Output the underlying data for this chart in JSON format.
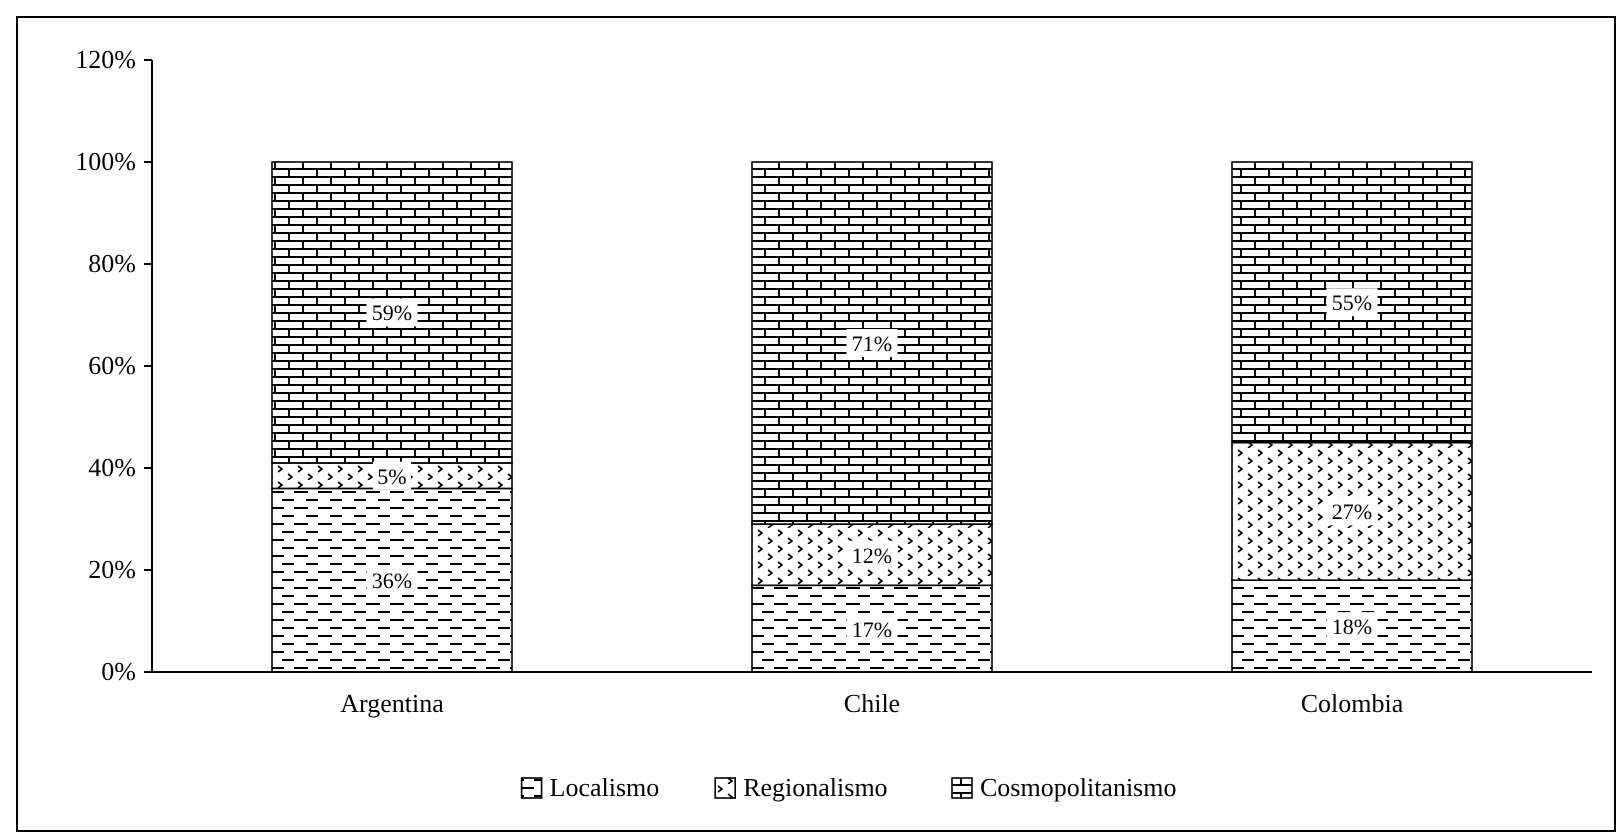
{
  "chart_data": {
    "type": "bar",
    "stacked": true,
    "categories": [
      "Argentina",
      "Chile",
      "Colombia"
    ],
    "series": [
      {
        "name": "Localismo",
        "color": "#000000",
        "values": [
          36,
          17,
          18
        ],
        "value_labels": [
          "36%",
          "17%",
          "18%"
        ]
      },
      {
        "name": "Regionalismo",
        "color": "#000000",
        "values": [
          5,
          12,
          27
        ],
        "value_labels": [
          "5%",
          "12%",
          "27%"
        ]
      },
      {
        "name": "Cosmopolitanismo",
        "color": "#000000",
        "values": [
          59,
          71,
          55
        ],
        "value_labels": [
          "59%",
          "71%",
          "55%"
        ]
      }
    ],
    "ylim": [
      0,
      120
    ],
    "yticks": [
      {
        "value": 0,
        "label": "0%"
      },
      {
        "value": 20,
        "label": "20%"
      },
      {
        "value": 40,
        "label": "40%"
      },
      {
        "value": 60,
        "label": "60%"
      },
      {
        "value": 80,
        "label": "80%"
      },
      {
        "value": 100,
        "label": "100%"
      },
      {
        "value": 120,
        "label": "120%"
      }
    ],
    "grid": false,
    "legend": "bottom"
  }
}
